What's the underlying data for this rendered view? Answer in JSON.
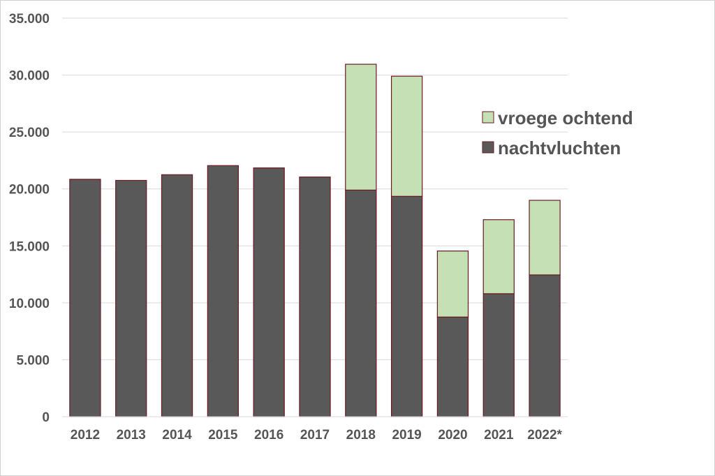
{
  "chart_data": {
    "type": "bar",
    "stacked": true,
    "categories": [
      "2012",
      "2013",
      "2014",
      "2015",
      "2016",
      "2017",
      "2018",
      "2019",
      "2020",
      "2021",
      "2022*"
    ],
    "series": [
      {
        "name": "nachtvluchten",
        "color": "#595959",
        "values": [
          20850,
          20750,
          21250,
          22050,
          21850,
          21050,
          19900,
          19350,
          8750,
          10800,
          12450
        ]
      },
      {
        "name": "vroege ochtend",
        "color": "#c5e0b4",
        "values": [
          0,
          0,
          0,
          0,
          0,
          0,
          11050,
          10550,
          5800,
          6500,
          6550
        ]
      }
    ],
    "yticks": [
      "0",
      "5.000",
      "10.000",
      "15.000",
      "20.000",
      "25.000",
      "30.000",
      "35.000"
    ],
    "ylim": [
      0,
      35000
    ],
    "grid": true,
    "legend_position": "right",
    "bar_edge_color": "#6b1a22"
  }
}
